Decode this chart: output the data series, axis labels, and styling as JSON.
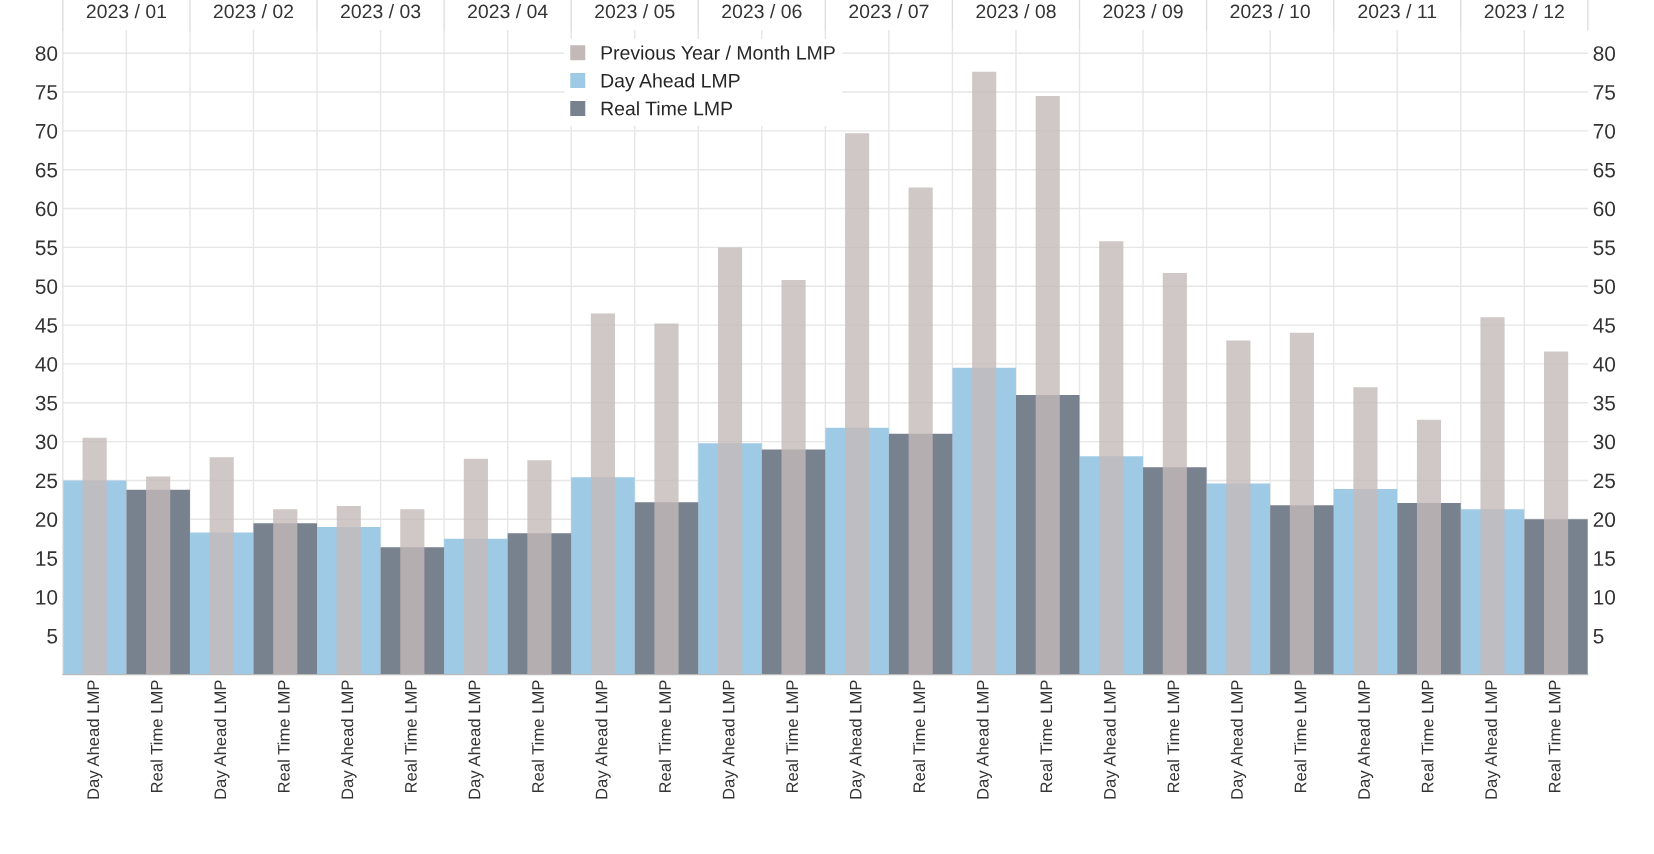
{
  "chart_data": {
    "type": "bar",
    "categories": [
      "Day Ahead LMP",
      "Real Time LMP",
      "Day Ahead LMP",
      "Real Time LMP",
      "Day Ahead LMP",
      "Real Time LMP",
      "Day Ahead LMP",
      "Real Time LMP",
      "Day Ahead LMP",
      "Real Time LMP",
      "Day Ahead LMP",
      "Real Time LMP",
      "Day Ahead LMP",
      "Real Time LMP",
      "Day Ahead LMP",
      "Real Time LMP",
      "Day Ahead LMP",
      "Real Time LMP",
      "Day Ahead LMP",
      "Real Time LMP",
      "Day Ahead LMP",
      "Real Time LMP",
      "Day Ahead LMP",
      "Real Time LMP"
    ],
    "series": [
      {
        "name": "Day Ahead LMP",
        "color": "#9fcae6",
        "values": [
          25.0,
          null,
          18.3,
          null,
          19.0,
          null,
          17.5,
          null,
          25.4,
          null,
          29.8,
          null,
          31.8,
          null,
          39.5,
          null,
          28.1,
          null,
          24.6,
          null,
          23.9,
          null,
          21.3,
          null
        ]
      },
      {
        "name": "Real Time LMP",
        "color": "#78818e",
        "values": [
          null,
          23.8,
          null,
          19.5,
          null,
          16.4,
          null,
          18.2,
          null,
          22.2,
          null,
          29.0,
          null,
          31.0,
          null,
          36.0,
          null,
          26.7,
          null,
          21.8,
          null,
          22.1,
          null,
          20.0
        ]
      },
      {
        "name": "Previous Year / Month LMP",
        "color": "#c4b9b9",
        "values": [
          30.5,
          25.5,
          28.0,
          21.3,
          21.7,
          21.3,
          27.8,
          27.6,
          46.5,
          45.2,
          55.0,
          50.8,
          69.7,
          62.7,
          77.6,
          74.5,
          55.8,
          51.7,
          43.0,
          44.0,
          37.0,
          32.8,
          46.0,
          41.6
        ]
      }
    ],
    "ylim": [
      0,
      83
    ],
    "yticks": [
      5,
      10,
      15,
      20,
      25,
      30,
      35,
      40,
      45,
      50,
      55,
      60,
      65,
      70,
      75,
      80
    ],
    "y2lim": [
      0,
      83
    ],
    "y2ticks": [
      5,
      10,
      15,
      20,
      25,
      30,
      35,
      40,
      45,
      50,
      55,
      60,
      65,
      70,
      75,
      80
    ],
    "annotations": [
      "2023 / 01",
      "2023 / 02",
      "2023 / 03",
      "2023 / 04",
      "2023 / 05",
      "2023 / 06",
      "2023 / 07",
      "2023 / 08",
      "2023 / 09",
      "2023 / 10",
      "2023 / 11",
      "2023 / 12"
    ],
    "grid": true,
    "legend": "top"
  }
}
